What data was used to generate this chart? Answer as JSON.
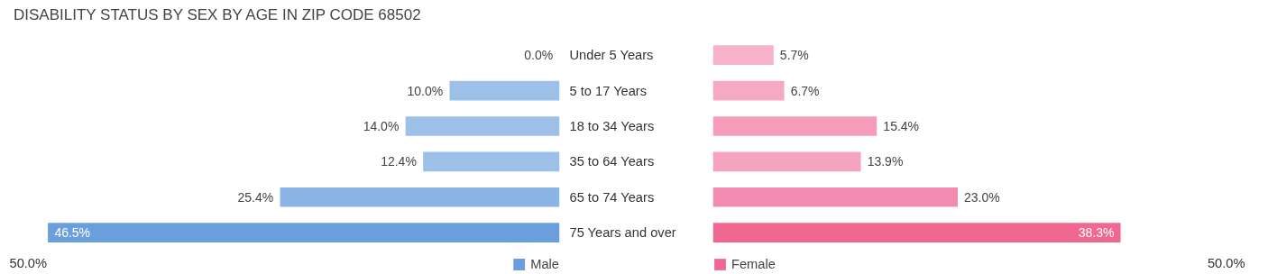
{
  "chart_data": [
    {
      "type": "bar",
      "orientation": "horizontal",
      "title": "DISABILITY STATUS BY SEX BY AGE IN ZIP CODE 68502",
      "categories": [
        "Under 5 Years",
        "5 to 17 Years",
        "18 to 34 Years",
        "35 to 64 Years",
        "65 to 74 Years",
        "75 Years and over"
      ],
      "series": [
        {
          "name": "Male",
          "color": "#6a9fdc",
          "values": [
            0.0,
            10.0,
            14.0,
            12.4,
            25.4,
            46.5
          ],
          "colors": [
            "#a9c9ee",
            "#9dc0e8",
            "#9dc0e8",
            "#9dc0e8",
            "#8ab4e4",
            "#6a9fdc"
          ],
          "value_labels": [
            "0.0%",
            "10.0%",
            "14.0%",
            "12.4%",
            "25.4%",
            "46.5%"
          ]
        }
      ],
      "annotations": [
        "50.0%"
      ],
      "tick_labels": "y",
      "legend": "bottom right"
    },
    {
      "type": "bar",
      "orientation": "horizontal",
      "categories": [
        null,
        null,
        null,
        null,
        null,
        null
      ],
      "series": [
        {
          "name": "Female",
          "color": "#f06892",
          "values": [
            5.7,
            6.7,
            15.4,
            13.9,
            23.0,
            38.3
          ],
          "colors": [
            "#f7b1c8",
            "#f5a9c2",
            "#f59cb9",
            "#f5a3bf",
            "#f38bb0",
            "#f06892"
          ],
          "value_labels": [
            "5.7%",
            "6.7%",
            "15.4%",
            "13.9%",
            "23.0%",
            "38.3%"
          ]
        }
      ],
      "annotations": [
        "50.0%"
      ],
      "tick_labels": false,
      "legend": "bottom left"
    }
  ]
}
